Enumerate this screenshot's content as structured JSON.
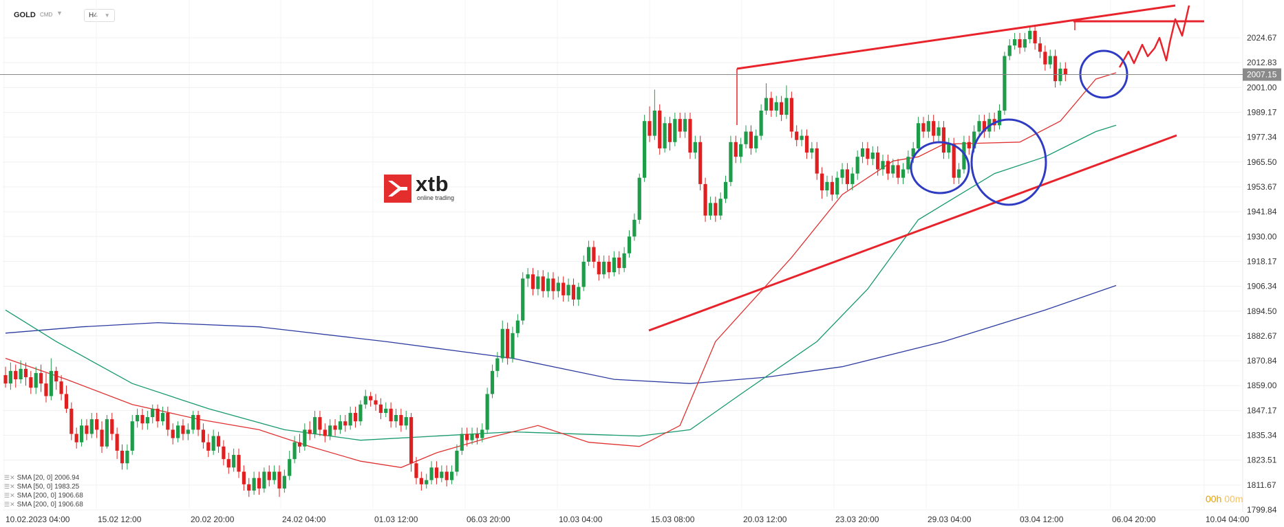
{
  "header": {
    "symbol": "GOLD",
    "market": "CMD",
    "timeframe": "H4"
  },
  "logo": {
    "word": "xtb",
    "tagline": "online trading"
  },
  "price_tag": "2007.15",
  "legend": [
    {
      "label": "SMA [20, 0] 2006.94",
      "color": "#e03131"
    },
    {
      "label": "SMA [50, 0] 1983.25",
      "color": "#16996b"
    },
    {
      "label": "SMA [200, 0] 1906.68",
      "color": "#2b3aa0"
    },
    {
      "label": "SMA [200, 0] 1906.68",
      "color": "#2b3aa0"
    }
  ],
  "timer": {
    "h": "00h",
    "m": "00m"
  },
  "colors": {
    "up": "#1e9c4a",
    "down": "#e02020",
    "sma20": "#e03131",
    "sma50": "#16996b",
    "sma200": "#2b3aa0",
    "annotation_red": "#e8232b",
    "annotation_blue": "#2e3bc2"
  },
  "chart_data": {
    "type": "candlestick",
    "ylim": [
      1799.84,
      2036.5
    ],
    "y_ticks": [
      2024.67,
      2012.83,
      2001.0,
      1989.17,
      1977.34,
      1965.5,
      1953.67,
      1941.84,
      1930.0,
      1918.17,
      1906.34,
      1894.5,
      1882.67,
      1870.84,
      1859.0,
      1847.17,
      1835.34,
      1823.51,
      1811.67,
      1799.84
    ],
    "x_labels": [
      "10.02.2023   04:00",
      "15.02   12:00",
      "20.02   20:00",
      "24.02   04:00",
      "01.03   12:00",
      "06.03   20:00",
      "10.03   04:00",
      "15.03   08:00",
      "20.03   12:00",
      "23.03   20:00",
      "29.03   04:00",
      "03.04   12:00",
      "06.04   20:00",
      "10.04   04:00"
    ],
    "current_price": 2007.15,
    "candles": [
      [
        1864,
        1860,
        1868,
        1858
      ],
      [
        1860,
        1866,
        1870,
        1857
      ],
      [
        1866,
        1862,
        1869,
        1858
      ],
      [
        1862,
        1867,
        1871,
        1860
      ],
      [
        1867,
        1863,
        1870,
        1859
      ],
      [
        1863,
        1858,
        1866,
        1855
      ],
      [
        1858,
        1865,
        1868,
        1855
      ],
      [
        1865,
        1860,
        1869,
        1856
      ],
      [
        1860,
        1854,
        1865,
        1851
      ],
      [
        1854,
        1866,
        1872,
        1852
      ],
      [
        1866,
        1861,
        1868,
        1857
      ],
      [
        1861,
        1855,
        1864,
        1852
      ],
      [
        1855,
        1848,
        1859,
        1846
      ],
      [
        1848,
        1836,
        1851,
        1833
      ],
      [
        1836,
        1832,
        1839,
        1829
      ],
      [
        1832,
        1840,
        1843,
        1830
      ],
      [
        1840,
        1836,
        1843,
        1833
      ],
      [
        1836,
        1843,
        1846,
        1834
      ],
      [
        1843,
        1838,
        1846,
        1834
      ],
      [
        1838,
        1830,
        1842,
        1827
      ],
      [
        1830,
        1843,
        1845,
        1829
      ],
      [
        1843,
        1836,
        1846,
        1833
      ],
      [
        1836,
        1828,
        1839,
        1824
      ],
      [
        1828,
        1822,
        1831,
        1819
      ],
      [
        1822,
        1828,
        1831,
        1819
      ],
      [
        1828,
        1842,
        1845,
        1826
      ],
      [
        1842,
        1845,
        1848,
        1839
      ],
      [
        1845,
        1841,
        1848,
        1838
      ],
      [
        1841,
        1844,
        1847,
        1838
      ],
      [
        1844,
        1848,
        1850,
        1841
      ],
      [
        1848,
        1842,
        1850,
        1839
      ],
      [
        1842,
        1846,
        1849,
        1840
      ],
      [
        1846,
        1838,
        1849,
        1835
      ],
      [
        1838,
        1834,
        1841,
        1831
      ],
      [
        1834,
        1840,
        1842,
        1832
      ],
      [
        1840,
        1836,
        1843,
        1833
      ],
      [
        1836,
        1838,
        1841,
        1833
      ],
      [
        1838,
        1845,
        1847,
        1836
      ],
      [
        1845,
        1838,
        1847,
        1835
      ],
      [
        1838,
        1832,
        1841,
        1829
      ],
      [
        1832,
        1828,
        1836,
        1825
      ],
      [
        1828,
        1835,
        1838,
        1826
      ],
      [
        1835,
        1830,
        1837,
        1827
      ],
      [
        1830,
        1824,
        1833,
        1821
      ],
      [
        1824,
        1820,
        1827,
        1817
      ],
      [
        1820,
        1826,
        1829,
        1818
      ],
      [
        1826,
        1818,
        1829,
        1815
      ],
      [
        1818,
        1812,
        1821,
        1809
      ],
      [
        1812,
        1809,
        1815,
        1806
      ],
      [
        1809,
        1815,
        1818,
        1807
      ],
      [
        1815,
        1810,
        1818,
        1807
      ],
      [
        1810,
        1818,
        1820,
        1808
      ],
      [
        1818,
        1814,
        1821,
        1811
      ],
      [
        1814,
        1818,
        1821,
        1812
      ],
      [
        1818,
        1810,
        1821,
        1806
      ],
      [
        1810,
        1816,
        1819,
        1808
      ],
      [
        1816,
        1824,
        1828,
        1814
      ],
      [
        1824,
        1832,
        1835,
        1822
      ],
      [
        1832,
        1830,
        1836,
        1827
      ],
      [
        1830,
        1838,
        1841,
        1828
      ],
      [
        1838,
        1836,
        1842,
        1833
      ],
      [
        1836,
        1844,
        1847,
        1834
      ],
      [
        1844,
        1838,
        1847,
        1835
      ],
      [
        1838,
        1835,
        1841,
        1832
      ],
      [
        1835,
        1840,
        1843,
        1833
      ],
      [
        1840,
        1838,
        1843,
        1835
      ],
      [
        1838,
        1842,
        1845,
        1836
      ],
      [
        1842,
        1840,
        1845,
        1837
      ],
      [
        1840,
        1846,
        1849,
        1838
      ],
      [
        1846,
        1842,
        1849,
        1839
      ],
      [
        1842,
        1850,
        1852,
        1840
      ],
      [
        1850,
        1854,
        1857,
        1848
      ],
      [
        1854,
        1852,
        1856,
        1849
      ],
      [
        1852,
        1850,
        1855,
        1847
      ],
      [
        1850,
        1846,
        1853,
        1843
      ],
      [
        1846,
        1848,
        1851,
        1844
      ],
      [
        1848,
        1842,
        1851,
        1839
      ],
      [
        1842,
        1845,
        1848,
        1839
      ],
      [
        1845,
        1840,
        1848,
        1837
      ],
      [
        1840,
        1844,
        1847,
        1838
      ],
      [
        1844,
        1822,
        1846,
        1818
      ],
      [
        1822,
        1815,
        1825,
        1812
      ],
      [
        1815,
        1812,
        1818,
        1809
      ],
      [
        1812,
        1814,
        1817,
        1810
      ],
      [
        1814,
        1820,
        1823,
        1812
      ],
      [
        1820,
        1815,
        1823,
        1812
      ],
      [
        1815,
        1818,
        1821,
        1813
      ],
      [
        1818,
        1814,
        1821,
        1811
      ],
      [
        1814,
        1818,
        1821,
        1812
      ],
      [
        1818,
        1828,
        1831,
        1816
      ],
      [
        1828,
        1836,
        1839,
        1826
      ],
      [
        1836,
        1833,
        1839,
        1830
      ],
      [
        1833,
        1836,
        1839,
        1831
      ],
      [
        1836,
        1834,
        1839,
        1831
      ],
      [
        1834,
        1838,
        1841,
        1832
      ],
      [
        1838,
        1855,
        1858,
        1836
      ],
      [
        1855,
        1866,
        1869,
        1853
      ],
      [
        1866,
        1872,
        1875,
        1863
      ],
      [
        1872,
        1886,
        1890,
        1870
      ],
      [
        1886,
        1872,
        1889,
        1869
      ],
      [
        1872,
        1884,
        1887,
        1870
      ],
      [
        1884,
        1890,
        1893,
        1882
      ],
      [
        1890,
        1910,
        1913,
        1888
      ],
      [
        1910,
        1912,
        1915,
        1906
      ],
      [
        1912,
        1905,
        1915,
        1902
      ],
      [
        1905,
        1911,
        1914,
        1902
      ],
      [
        1911,
        1904,
        1914,
        1901
      ],
      [
        1904,
        1910,
        1913,
        1901
      ],
      [
        1910,
        1904,
        1913,
        1900
      ],
      [
        1904,
        1908,
        1911,
        1901
      ],
      [
        1908,
        1902,
        1911,
        1899
      ],
      [
        1902,
        1907,
        1910,
        1899
      ],
      [
        1907,
        1900,
        1910,
        1897
      ],
      [
        1900,
        1906,
        1908,
        1897
      ],
      [
        1906,
        1918,
        1921,
        1904
      ],
      [
        1918,
        1925,
        1928,
        1916
      ],
      [
        1925,
        1918,
        1928,
        1915
      ],
      [
        1918,
        1912,
        1921,
        1909
      ],
      [
        1912,
        1918,
        1921,
        1910
      ],
      [
        1918,
        1913,
        1921,
        1910
      ],
      [
        1913,
        1920,
        1923,
        1911
      ],
      [
        1920,
        1915,
        1923,
        1912
      ],
      [
        1915,
        1922,
        1925,
        1913
      ],
      [
        1922,
        1930,
        1933,
        1920
      ],
      [
        1930,
        1938,
        1941,
        1928
      ],
      [
        1938,
        1958,
        1960,
        1936
      ],
      [
        1958,
        1985,
        1988,
        1956
      ],
      [
        1985,
        1978,
        1992,
        1975
      ],
      [
        1978,
        1990,
        2000,
        1976
      ],
      [
        1990,
        1972,
        1993,
        1969
      ],
      [
        1972,
        1984,
        1987,
        1970
      ],
      [
        1984,
        1975,
        1987,
        1971
      ],
      [
        1975,
        1986,
        1989,
        1973
      ],
      [
        1986,
        1980,
        1989,
        1977
      ],
      [
        1980,
        1986,
        1989,
        1977
      ],
      [
        1986,
        1970,
        1989,
        1967
      ],
      [
        1970,
        1975,
        1978,
        1967
      ],
      [
        1975,
        1955,
        1978,
        1952
      ],
      [
        1955,
        1940,
        1958,
        1937
      ],
      [
        1940,
        1946,
        1949,
        1938
      ],
      [
        1946,
        1940,
        1949,
        1937
      ],
      [
        1940,
        1948,
        1951,
        1938
      ],
      [
        1948,
        1956,
        1959,
        1946
      ],
      [
        1956,
        1975,
        1978,
        1954
      ],
      [
        1975,
        1968,
        1978,
        1965
      ],
      [
        1968,
        1974,
        1977,
        1965
      ],
      [
        1974,
        1980,
        1983,
        1972
      ],
      [
        1980,
        1972,
        1983,
        1969
      ],
      [
        1972,
        1978,
        1981,
        1970
      ],
      [
        1978,
        1990,
        1993,
        1976
      ],
      [
        1990,
        1996,
        2003,
        1988
      ],
      [
        1996,
        1990,
        1999,
        1987
      ],
      [
        1990,
        1994,
        1997,
        1987
      ],
      [
        1994,
        1988,
        1997,
        1985
      ],
      [
        1988,
        1996,
        2002,
        1986
      ],
      [
        1996,
        1980,
        1999,
        1977
      ],
      [
        1980,
        1976,
        1983,
        1973
      ],
      [
        1976,
        1978,
        1981,
        1973
      ],
      [
        1978,
        1970,
        1981,
        1967
      ],
      [
        1970,
        1972,
        1975,
        1967
      ],
      [
        1972,
        1960,
        1975,
        1957
      ],
      [
        1960,
        1952,
        1963,
        1948
      ],
      [
        1952,
        1956,
        1959,
        1949
      ],
      [
        1956,
        1950,
        1959,
        1947
      ],
      [
        1950,
        1958,
        1961,
        1948
      ],
      [
        1958,
        1962,
        1965,
        1955
      ],
      [
        1962,
        1955,
        1965,
        1952
      ],
      [
        1955,
        1960,
        1963,
        1952
      ],
      [
        1960,
        1968,
        1971,
        1957
      ],
      [
        1968,
        1972,
        1975,
        1965
      ],
      [
        1972,
        1967,
        1975,
        1964
      ],
      [
        1967,
        1970,
        1973,
        1964
      ],
      [
        1970,
        1962,
        1973,
        1959
      ],
      [
        1962,
        1966,
        1969,
        1959
      ],
      [
        1966,
        1960,
        1969,
        1957
      ],
      [
        1960,
        1964,
        1967,
        1958
      ],
      [
        1964,
        1958,
        1967,
        1955
      ],
      [
        1958,
        1962,
        1965,
        1955
      ],
      [
        1962,
        1968,
        1971,
        1960
      ],
      [
        1968,
        1972,
        1975,
        1965
      ],
      [
        1972,
        1984,
        1987,
        1970
      ],
      [
        1984,
        1980,
        1987,
        1977
      ],
      [
        1980,
        1985,
        1988,
        1977
      ],
      [
        1985,
        1978,
        1988,
        1975
      ],
      [
        1978,
        1982,
        1985,
        1975
      ],
      [
        1982,
        1970,
        1985,
        1967
      ],
      [
        1970,
        1974,
        1977,
        1967
      ],
      [
        1974,
        1958,
        1977,
        1955
      ],
      [
        1958,
        1962,
        1965,
        1955
      ],
      [
        1962,
        1975,
        1978,
        1960
      ],
      [
        1975,
        1972,
        1978,
        1969
      ],
      [
        1972,
        1980,
        1983,
        1970
      ],
      [
        1980,
        1985,
        1988,
        1977
      ],
      [
        1985,
        1980,
        1988,
        1977
      ],
      [
        1980,
        1986,
        1989,
        1977
      ],
      [
        1986,
        1983,
        1989,
        1980
      ],
      [
        1983,
        1990,
        1993,
        1981
      ],
      [
        1990,
        2016,
        2018,
        1988
      ],
      [
        2016,
        2021,
        2024,
        2014
      ],
      [
        2021,
        2024,
        2027,
        2019
      ],
      [
        2024,
        2020,
        2027,
        2017
      ],
      [
        2020,
        2024,
        2027,
        2018
      ],
      [
        2024,
        2028,
        2030,
        2022
      ],
      [
        2028,
        2022,
        2030,
        2019
      ],
      [
        2022,
        2018,
        2025,
        2015
      ],
      [
        2018,
        2012,
        2021,
        2009
      ],
      [
        2012,
        2016,
        2019,
        2010
      ],
      [
        2016,
        2004,
        2019,
        2001
      ],
      [
        2004,
        2010,
        2013,
        2002
      ],
      [
        2010,
        2007,
        2013,
        2004
      ]
    ],
    "sma20_points": [
      [
        0,
        1872
      ],
      [
        12,
        1862
      ],
      [
        25,
        1850
      ],
      [
        38,
        1843
      ],
      [
        50,
        1838
      ],
      [
        60,
        1830
      ],
      [
        70,
        1823
      ],
      [
        78,
        1820
      ],
      [
        85,
        1827
      ],
      [
        95,
        1834
      ],
      [
        105,
        1840
      ],
      [
        115,
        1832
      ],
      [
        125,
        1830
      ],
      [
        133,
        1840
      ],
      [
        140,
        1880
      ],
      [
        155,
        1920
      ],
      [
        165,
        1950
      ],
      [
        175,
        1966
      ],
      [
        180,
        1968
      ],
      [
        185,
        1974
      ],
      [
        200,
        1975
      ],
      [
        208,
        1985
      ],
      [
        215,
        2005
      ],
      [
        219,
        2008
      ]
    ],
    "sma50_points": [
      [
        0,
        1895
      ],
      [
        10,
        1880
      ],
      [
        25,
        1860
      ],
      [
        40,
        1848
      ],
      [
        55,
        1838
      ],
      [
        70,
        1833
      ],
      [
        85,
        1835
      ],
      [
        100,
        1837
      ],
      [
        125,
        1835
      ],
      [
        135,
        1838
      ],
      [
        145,
        1855
      ],
      [
        160,
        1880
      ],
      [
        170,
        1905
      ],
      [
        180,
        1938
      ],
      [
        195,
        1960
      ],
      [
        205,
        1968
      ],
      [
        215,
        1980
      ],
      [
        219,
        1983
      ]
    ],
    "sma200_points": [
      [
        0,
        1884
      ],
      [
        15,
        1887
      ],
      [
        30,
        1889
      ],
      [
        50,
        1887
      ],
      [
        75,
        1880
      ],
      [
        100,
        1872
      ],
      [
        120,
        1862
      ],
      [
        135,
        1860
      ],
      [
        150,
        1863
      ],
      [
        165,
        1868
      ],
      [
        185,
        1880
      ],
      [
        205,
        1895
      ],
      [
        219,
        1906.68
      ]
    ]
  }
}
